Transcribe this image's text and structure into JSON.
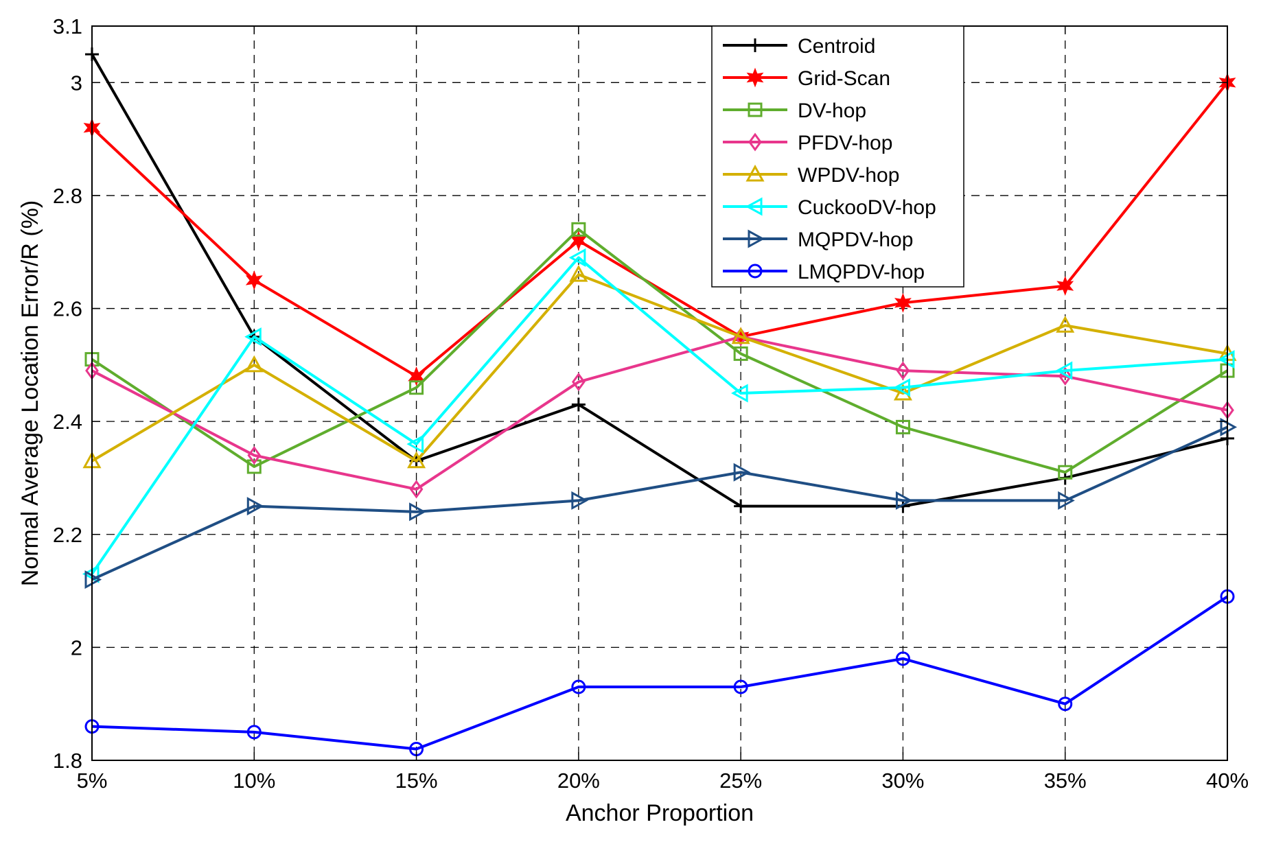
{
  "chart_data": {
    "type": "line",
    "title": "",
    "xlabel": "Anchor Proportion",
    "ylabel": "Normal Average Location Error/R (%)",
    "categories": [
      "5%",
      "10%",
      "15%",
      "20%",
      "25%",
      "30%",
      "35%",
      "40%"
    ],
    "ylim": [
      1.8,
      3.1
    ],
    "yticks": [
      "1.8",
      "2",
      "2.2",
      "2.4",
      "2.6",
      "2.8",
      "3",
      "3.1"
    ],
    "ytick_values": [
      1.8,
      2.0,
      2.2,
      2.4,
      2.6,
      2.8,
      3.0,
      3.1
    ],
    "grid": true,
    "legend_position": "top-right",
    "series": [
      {
        "name": "Centroid",
        "color": "#000000",
        "marker": "plus",
        "values": [
          3.05,
          2.55,
          2.33,
          2.43,
          2.25,
          2.25,
          2.3,
          2.37
        ]
      },
      {
        "name": "Grid-Scan",
        "color": "#ff0000",
        "marker": "hexagram",
        "values": [
          2.92,
          2.65,
          2.48,
          2.72,
          2.55,
          2.61,
          2.64,
          3.0
        ]
      },
      {
        "name": "DV-hop",
        "color": "#5fad2d",
        "marker": "square",
        "values": [
          2.51,
          2.32,
          2.46,
          2.74,
          2.52,
          2.39,
          2.31,
          2.49
        ]
      },
      {
        "name": "PFDV-hop",
        "color": "#e8368c",
        "marker": "diamond",
        "values": [
          2.49,
          2.34,
          2.28,
          2.47,
          2.55,
          2.49,
          2.48,
          2.42
        ]
      },
      {
        "name": "WPDV-hop",
        "color": "#d4b000",
        "marker": "triangle-up",
        "values": [
          2.33,
          2.5,
          2.33,
          2.66,
          2.55,
          2.45,
          2.57,
          2.52
        ]
      },
      {
        "name": "CuckooDV-hop",
        "color": "#00ffff",
        "marker": "triangle-left",
        "values": [
          2.13,
          2.55,
          2.36,
          2.69,
          2.45,
          2.46,
          2.49,
          2.51
        ]
      },
      {
        "name": "MQPDV-hop",
        "color": "#1f4e84",
        "marker": "triangle-right",
        "values": [
          2.12,
          2.25,
          2.24,
          2.26,
          2.31,
          2.26,
          2.26,
          2.39
        ]
      },
      {
        "name": "LMQPDV-hop",
        "color": "#0000ff",
        "marker": "circle",
        "values": [
          1.86,
          1.85,
          1.82,
          1.93,
          1.93,
          1.98,
          1.9,
          2.09
        ]
      }
    ]
  }
}
